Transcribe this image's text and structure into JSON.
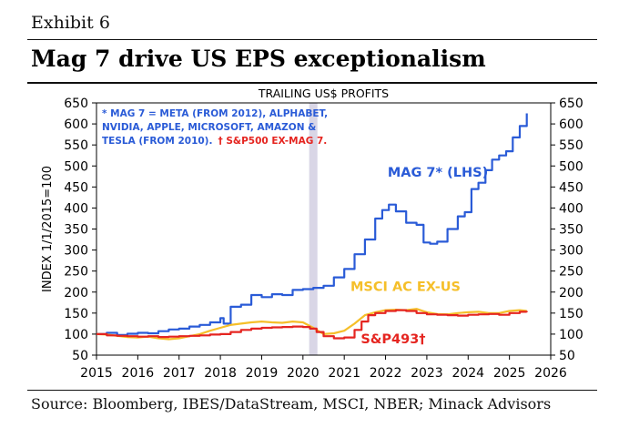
{
  "header": {
    "exhibit": "Exhibit 6",
    "title": "Mag 7 drive US EPS exceptionalism"
  },
  "footer": {
    "source": "Source: Bloomberg, IBES/DataStream, MSCI, NBER; Minack Advisors"
  },
  "colors": {
    "mag7": "#2a5bd7",
    "msci": "#f5bf2a",
    "sp493": "#e52520",
    "recession": "#d9d6e6",
    "axis": "#000000"
  },
  "chart_data": {
    "type": "line",
    "title": "TRAILING US$ PROFITS",
    "ylabel": "INDEX 1/1/2015=100",
    "xlim": [
      2015,
      2026
    ],
    "ylim": [
      50,
      650
    ],
    "xticks": [
      "2015",
      "2016",
      "2017",
      "2018",
      "2019",
      "2020",
      "2021",
      "2022",
      "2023",
      "2024",
      "2025",
      "2026"
    ],
    "yticks": [
      "50",
      "100",
      "150",
      "200",
      "250",
      "300",
      "350",
      "400",
      "450",
      "500",
      "550",
      "600",
      "650"
    ],
    "note_blue_lines": [
      "* MAG 7 = META (FROM 2012), ALPHABET,",
      "NVIDIA, APPLE, MICROSOFT, AMAZON &",
      "TESLA (FROM 2010)."
    ],
    "note_red": "† S&P500 EX-MAG 7.",
    "shaded_periods": [
      {
        "start": 2020.15,
        "end": 2020.35,
        "label": "recession"
      }
    ],
    "series": [
      {
        "name": "MAG 7* (LHS)",
        "color": "#2a5bd7",
        "step": true,
        "x": [
          2015.0,
          2015.25,
          2015.5,
          2015.75,
          2016.0,
          2016.25,
          2016.5,
          2016.75,
          2017.0,
          2017.25,
          2017.5,
          2017.75,
          2018.0,
          2018.08,
          2018.25,
          2018.5,
          2018.75,
          2019.0,
          2019.25,
          2019.5,
          2019.75,
          2020.0,
          2020.25,
          2020.5,
          2020.75,
          2021.0,
          2021.25,
          2021.5,
          2021.75,
          2021.92,
          2022.08,
          2022.25,
          2022.5,
          2022.75,
          2022.92,
          2023.08,
          2023.25,
          2023.5,
          2023.75,
          2023.92,
          2024.08,
          2024.25,
          2024.42,
          2024.58,
          2024.75,
          2024.92,
          2025.08,
          2025.25,
          2025.42
        ],
        "y": [
          100,
          103,
          98,
          101,
          103,
          102,
          107,
          111,
          113,
          118,
          122,
          128,
          138,
          125,
          165,
          170,
          193,
          188,
          195,
          193,
          205,
          207,
          210,
          215,
          235,
          255,
          290,
          325,
          375,
          395,
          408,
          392,
          365,
          360,
          318,
          315,
          320,
          350,
          380,
          390,
          445,
          460,
          490,
          515,
          525,
          535,
          568,
          595,
          625
        ]
      },
      {
        "name": "MSCI AC EX-US",
        "color": "#f5bf2a",
        "step": false,
        "x": [
          2015.0,
          2015.25,
          2015.5,
          2015.75,
          2016.0,
          2016.25,
          2016.5,
          2016.75,
          2017.0,
          2017.25,
          2017.5,
          2017.75,
          2018.0,
          2018.25,
          2018.5,
          2018.75,
          2019.0,
          2019.25,
          2019.5,
          2019.75,
          2020.0,
          2020.25,
          2020.5,
          2020.75,
          2021.0,
          2021.25,
          2021.5,
          2021.75,
          2022.0,
          2022.25,
          2022.5,
          2022.75,
          2023.0,
          2023.25,
          2023.5,
          2023.75,
          2024.0,
          2024.25,
          2024.5,
          2024.75,
          2025.0,
          2025.25,
          2025.42
        ],
        "y": [
          100,
          99,
          96,
          93,
          92,
          94,
          90,
          88,
          90,
          95,
          100,
          108,
          115,
          122,
          125,
          128,
          130,
          128,
          127,
          130,
          128,
          115,
          100,
          102,
          108,
          125,
          145,
          152,
          157,
          158,
          157,
          160,
          152,
          148,
          147,
          150,
          152,
          153,
          150,
          150,
          155,
          157,
          155
        ]
      },
      {
        "name": "S&P493†",
        "color": "#e52520",
        "step": true,
        "x": [
          2015.0,
          2015.25,
          2015.5,
          2015.75,
          2016.0,
          2016.25,
          2016.5,
          2016.75,
          2017.0,
          2017.25,
          2017.5,
          2017.75,
          2018.0,
          2018.25,
          2018.5,
          2018.75,
          2019.0,
          2019.25,
          2019.5,
          2019.75,
          2020.0,
          2020.17,
          2020.33,
          2020.5,
          2020.75,
          2021.0,
          2021.25,
          2021.42,
          2021.58,
          2021.75,
          2022.0,
          2022.25,
          2022.5,
          2022.75,
          2023.0,
          2023.25,
          2023.5,
          2023.75,
          2024.0,
          2024.25,
          2024.5,
          2024.75,
          2025.0,
          2025.25,
          2025.42
        ],
        "y": [
          100,
          97,
          96,
          95,
          94,
          95,
          93,
          94,
          95,
          96,
          97,
          99,
          100,
          105,
          110,
          113,
          115,
          116,
          117,
          118,
          117,
          113,
          105,
          95,
          90,
          92,
          110,
          130,
          145,
          150,
          155,
          157,
          155,
          150,
          147,
          146,
          145,
          144,
          146,
          147,
          148,
          146,
          150,
          153,
          152
        ]
      }
    ],
    "series_labels": [
      {
        "series": "MAG 7* (LHS)",
        "x": 2022.05,
        "y": 475
      },
      {
        "series": "MSCI AC EX-US",
        "x": 2021.15,
        "y": 203
      },
      {
        "series": "S&P493†",
        "x": 2021.4,
        "y": 78
      }
    ]
  }
}
